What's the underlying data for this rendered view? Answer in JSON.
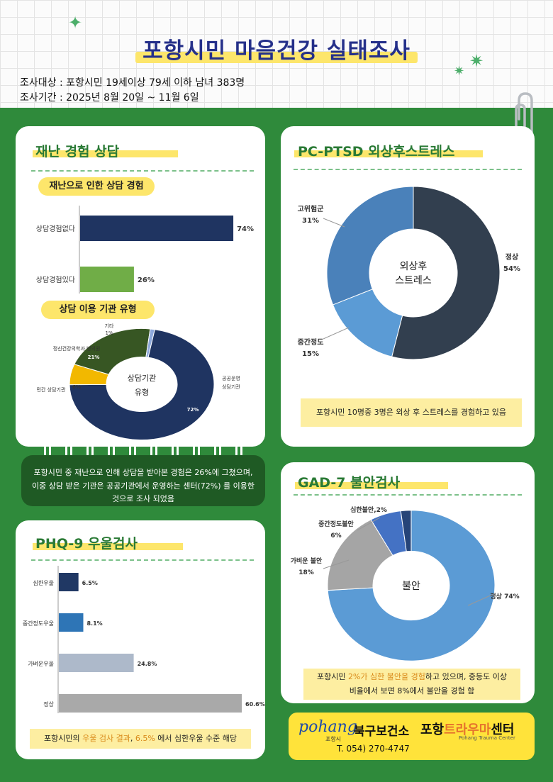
{
  "header": {
    "title": "포항시민 마음건강 실태조사",
    "target": "조사대상 : 포항시민 19세이상 79세 이하 남녀 383명",
    "period": "조사기간 : 2025년 8월 20일 ~ 11월 6일"
  },
  "disaster": {
    "title": "재난 경험 상담",
    "sub1": "재난으로 인한 상담 경험",
    "sub2": "상담 이용 기관 유형",
    "note": "포항시민 중 재난으로 인해 상담을 받아본 경험은 26%에 그쳤으며, 이중 상담 받은 기관은 공공기관에서 운영하는 센터(72%) 를 이용한 것으로 조사 되었음"
  },
  "ptsd": {
    "title": "PC-PTSD 외상후스트레스",
    "note": "포항시민 10명중 3명은 외상 후 스트레스를 경험하고 있음"
  },
  "phq": {
    "title": "PHQ-9 우울검사",
    "note_parts": [
      "포항시민의 ",
      "우울 검사 결과",
      ", ",
      "6.5%",
      " 에서 심한우울 수준 해당"
    ]
  },
  "gad": {
    "title": "GAD-7 불안검사",
    "note_line1_parts": [
      "포항시민 ",
      "2%가 심한 불안을 경험",
      "하고 있으며, 중등도 이상"
    ],
    "note_line2": "비율에서 보면 8%에서 불안을 경험 함"
  },
  "footer": {
    "logo_en": "pohang",
    "logo_small": "포항시",
    "org1": "북구보건소",
    "org2_a": "포항",
    "org2_b": "트라우마",
    "org2_c": "센터",
    "org2_en": "Pohang Trauma Center",
    "phone": "T. 054) 270-4747"
  },
  "colors": {
    "green": "#2f8a3b",
    "navy": "#1f3461",
    "yellow": "#fde66b",
    "blue": "#5b9bd5"
  },
  "chart_data": [
    {
      "id": "consult",
      "type": "bar",
      "orientation": "horizontal",
      "categories": [
        "상담경험없다",
        "상담경험있다"
      ],
      "values": [
        74,
        26
      ],
      "labels": [
        "74%",
        "26%"
      ],
      "colors": [
        "#1f3461",
        "#70ad47"
      ],
      "xlim": [
        0,
        100
      ]
    },
    {
      "id": "agency",
      "type": "pie",
      "center_label": [
        "상담기관",
        "유형"
      ],
      "slices": [
        {
          "label": "공공운영 상담기관",
          "value": 72,
          "text": "72%",
          "color": "#1f3461"
        },
        {
          "label": "민간 상담기관",
          "value": 6,
          "text": "6%",
          "color": "#f2b800"
        },
        {
          "label": "정신건강의학과 병의원",
          "value": 21,
          "text": "21%",
          "color": "#375623"
        },
        {
          "label": "기타",
          "value": 1,
          "text": "1%",
          "color": "#8faadc"
        }
      ]
    },
    {
      "id": "ptsd",
      "type": "pie",
      "center_label": [
        "외상후",
        "스트레스"
      ],
      "slices": [
        {
          "label": "정상",
          "value": 54,
          "text": "54%",
          "color": "#323f4f"
        },
        {
          "label": "중간정도",
          "value": 15,
          "text": "15%",
          "color": "#5b9bd5"
        },
        {
          "label": "고위험군",
          "value": 31,
          "text": "31%",
          "color": "#4a81ba"
        }
      ]
    },
    {
      "id": "phq",
      "type": "bar",
      "orientation": "horizontal",
      "categories": [
        "심한우울",
        "중간정도우울",
        "가벼운우울",
        "정상"
      ],
      "values": [
        6.5,
        8.1,
        24.8,
        60.6
      ],
      "labels": [
        "6.5%",
        "8.1%",
        "24.8%",
        "60.6%"
      ],
      "colors": [
        "#203864",
        "#2e75b6",
        "#adb9ca",
        "#a9a9a9"
      ],
      "xlim": [
        0,
        60.6
      ]
    },
    {
      "id": "gad",
      "type": "pie",
      "center_label": [
        "불안"
      ],
      "slices": [
        {
          "label": "정상",
          "value": 74,
          "text": "정상 74%",
          "color": "#5b9bd5"
        },
        {
          "label": "가벼운 불안",
          "value": 18,
          "text": "18%",
          "color": "#a5a5a5"
        },
        {
          "label": "중간정도불안",
          "value": 6,
          "text": "6%",
          "color": "#4472c4"
        },
        {
          "label": "심한불안",
          "value": 2,
          "text": "심한불안,2%",
          "color": "#264478"
        }
      ]
    }
  ]
}
